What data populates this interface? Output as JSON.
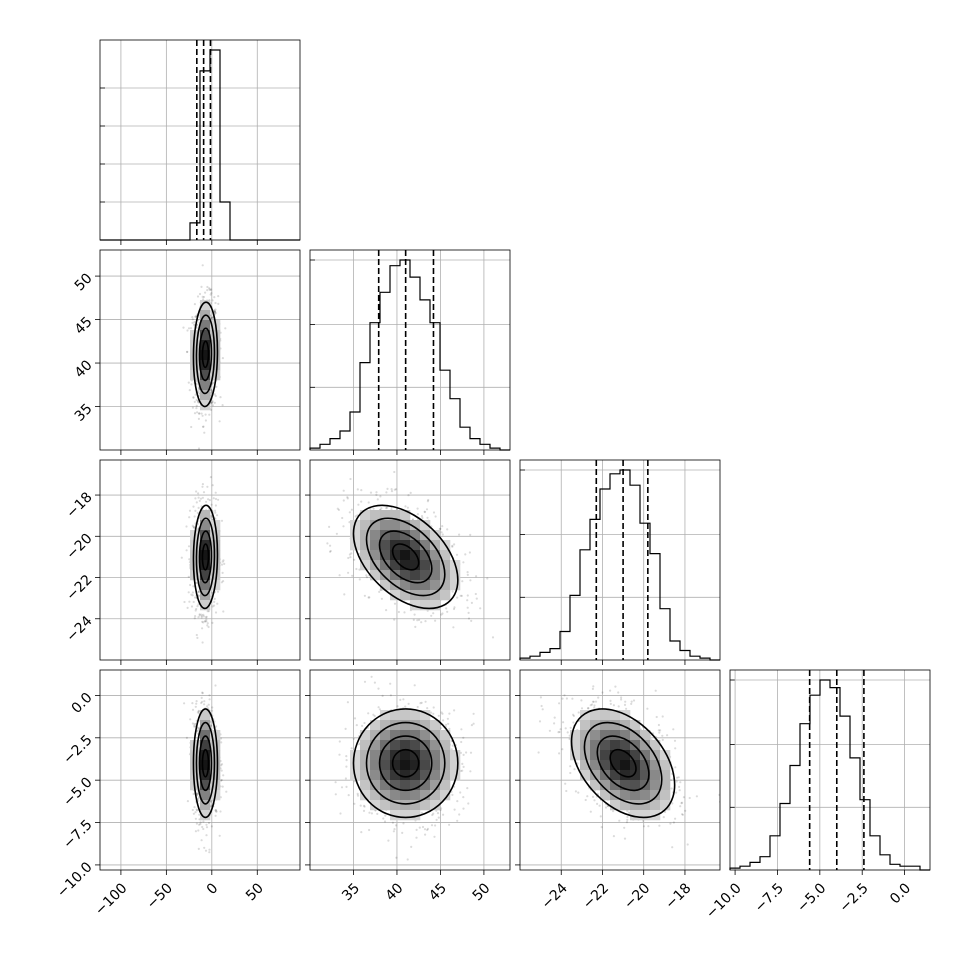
{
  "chart_data": {
    "type": "corner",
    "parameters": [
      {
        "range": [
          -123,
          97
        ],
        "ticks": [
          -100,
          -50,
          0,
          50
        ],
        "tick_labels": [
          "−100",
          "−50",
          "0",
          "50"
        ]
      },
      {
        "range": [
          30,
          53
        ],
        "ticks": [
          35,
          40,
          45,
          50
        ],
        "tick_labels": [
          "35",
          "40",
          "45",
          "50"
        ]
      },
      {
        "range": [
          -26,
          -16.3
        ],
        "ticks": [
          -24,
          -22,
          -20,
          -18
        ],
        "tick_labels": [
          "−24",
          "−22",
          "−20",
          "−18"
        ]
      },
      {
        "range": [
          -10.3,
          1.5
        ],
        "ticks": [
          -10.0,
          -7.5,
          -5.0,
          -2.5,
          0.0
        ],
        "tick_labels": [
          "−10.0",
          "−7.5",
          "−5.0",
          "−2.5",
          "0.0"
        ]
      }
    ],
    "grid": true,
    "marginals": [
      {
        "parameter": 0,
        "bin_edges": [
          -123,
          -112,
          -101,
          -90,
          -79,
          -68,
          -57,
          -46,
          -35,
          -24,
          -13,
          -2,
          9,
          20,
          31,
          42,
          53,
          64,
          75,
          86,
          97
        ],
        "counts": [
          0,
          0,
          0,
          0,
          0,
          0,
          0,
          0,
          0,
          0.09,
          0.89,
          1.0,
          0.2,
          0,
          0,
          0,
          0,
          0,
          0,
          0
        ],
        "quantiles": [
          -16.5,
          -9,
          -1.5
        ],
        "yticks": [
          0.2,
          0.4,
          0.6,
          0.8
        ]
      },
      {
        "parameter": 1,
        "bin_edges": [
          30.0,
          31.15,
          32.3,
          33.45,
          34.6,
          35.75,
          36.9,
          38.05,
          39.2,
          40.35,
          41.5,
          42.65,
          43.8,
          44.95,
          46.1,
          47.25,
          48.4,
          49.55,
          50.7,
          51.85,
          53.0
        ],
        "counts": [
          0.01,
          0.03,
          0.06,
          0.1,
          0.2,
          0.46,
          0.67,
          0.83,
          0.97,
          1.0,
          0.91,
          0.79,
          0.67,
          0.42,
          0.27,
          0.12,
          0.06,
          0.03,
          0.01,
          0
        ],
        "quantiles": [
          37.9,
          41.0,
          44.2
        ],
        "yticks": [
          0.33,
          0.66,
          1.0
        ]
      },
      {
        "parameter": 2,
        "bin_edges": [
          -26.0,
          -25.515,
          -25.03,
          -24.545,
          -24.06,
          -23.575,
          -23.09,
          -22.605,
          -22.12,
          -21.635,
          -21.15,
          -20.665,
          -20.18,
          -19.695,
          -19.21,
          -18.725,
          -18.24,
          -17.755,
          -17.27,
          -16.785,
          -16.3
        ],
        "counts": [
          0.01,
          0.02,
          0.04,
          0.06,
          0.15,
          0.34,
          0.58,
          0.74,
          0.9,
          0.98,
          1.0,
          0.92,
          0.72,
          0.56,
          0.27,
          0.1,
          0.05,
          0.02,
          0.01,
          0
        ],
        "quantiles": [
          -22.3,
          -21.0,
          -19.8
        ],
        "yticks": [
          0.33,
          0.66,
          1.0
        ]
      },
      {
        "parameter": 3,
        "bin_edges": [
          -10.3,
          -9.71,
          -9.12,
          -8.53,
          -7.94,
          -7.35,
          -6.76,
          -6.17,
          -5.58,
          -4.99,
          -4.4,
          -3.81,
          -3.22,
          -2.63,
          -2.04,
          -1.45,
          -0.86,
          -0.27,
          0.32,
          0.91,
          1.5
        ],
        "counts": [
          0.01,
          0.02,
          0.04,
          0.07,
          0.18,
          0.35,
          0.55,
          0.77,
          0.92,
          1.0,
          0.96,
          0.81,
          0.59,
          0.37,
          0.18,
          0.08,
          0.03,
          0.02,
          0.02,
          0
        ],
        "quantiles": [
          -5.6,
          -4.0,
          -2.4
        ],
        "yticks": [
          0.33,
          0.66,
          1.0
        ]
      }
    ],
    "pairs": [
      {
        "x": 0,
        "y": 1,
        "mean": [
          -7,
          41.0
        ],
        "sigma": [
          6.6,
          3.0
        ],
        "rho": 0.05
      },
      {
        "x": 0,
        "y": 2,
        "mean": [
          -7,
          -21.0
        ],
        "sigma": [
          6.6,
          1.25
        ],
        "rho": 0.05
      },
      {
        "x": 0,
        "y": 3,
        "mean": [
          -7,
          -4.0
        ],
        "sigma": [
          6.6,
          1.6
        ],
        "rho": 0.0
      },
      {
        "x": 1,
        "y": 2,
        "mean": [
          41.0,
          -21.0
        ],
        "sigma": [
          3.0,
          1.25
        ],
        "rho": -0.45
      },
      {
        "x": 1,
        "y": 3,
        "mean": [
          41.0,
          -4.0
        ],
        "sigma": [
          3.0,
          1.6
        ],
        "rho": 0.0
      },
      {
        "x": 2,
        "y": 3,
        "mean": [
          -21.0,
          -4.0
        ],
        "sigma": [
          1.25,
          1.6
        ],
        "rho": -0.4
      }
    ],
    "contour_levels_sigma": [
      0.5,
      1.0,
      1.5,
      2.0
    ]
  }
}
